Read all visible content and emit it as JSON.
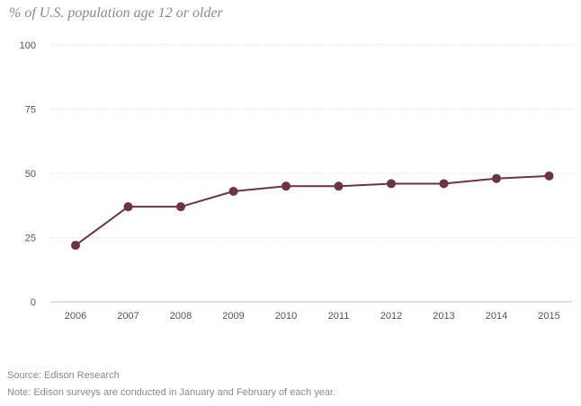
{
  "chart_data": {
    "type": "line",
    "subtitle": "% of U.S. population age 12 or older",
    "x": [
      "2006",
      "2007",
      "2008",
      "2009",
      "2010",
      "2011",
      "2012",
      "2013",
      "2014",
      "2015"
    ],
    "series": [
      {
        "values": [
          22,
          37,
          37,
          43,
          45,
          45,
          46,
          46,
          48,
          49
        ]
      }
    ],
    "yticks": [
      "100",
      "75",
      "50",
      "25",
      "0"
    ],
    "ylim": [
      0,
      100
    ],
    "grid": true,
    "colors": {
      "line": "#6e3340",
      "grid": "#dcdcdc",
      "axis": "#a9c7d6"
    }
  },
  "footer": {
    "source": "Source: Edison Research",
    "note": "Note: Edison surveys are conducted in January and February of each year."
  }
}
